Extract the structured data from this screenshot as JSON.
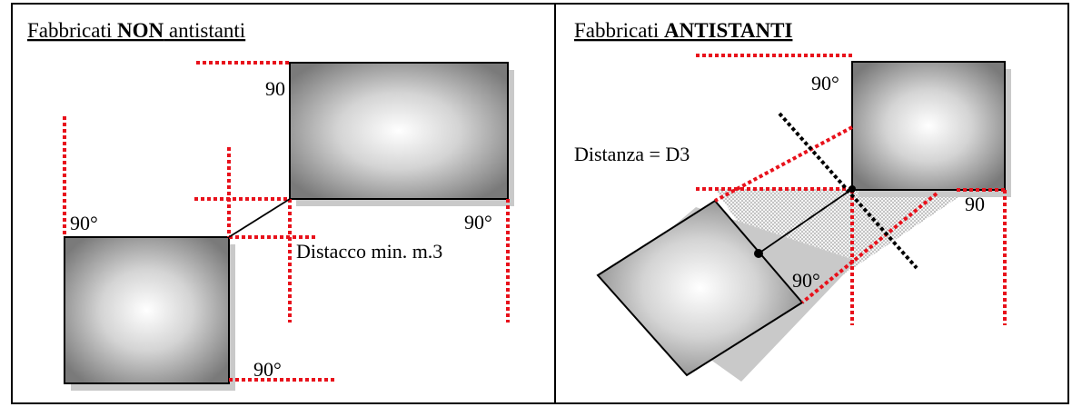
{
  "left_panel": {
    "title_part1": "Fabbricati ",
    "title_bold": "NON",
    "title_part2": " antistanti",
    "angle_top_building": "90",
    "angle_bottom_building_top": "90°",
    "angle_top_building_right": "90°",
    "angle_bottom_building_bottom": "90°",
    "distance_label": "Distacco min. m.3"
  },
  "right_panel": {
    "title_part1": "Fabbricati  ",
    "title_bold": "ANTISTANTI",
    "angle_top_building": "90°",
    "angle_right_building": "90",
    "angle_rotated_building": "90°",
    "distance_label": "Distanza = D3"
  },
  "colors": {
    "guide_lines": "#e8111b",
    "projection_line": "#000000",
    "hatch_fill": "#d0d0d0",
    "border": "#000000"
  }
}
